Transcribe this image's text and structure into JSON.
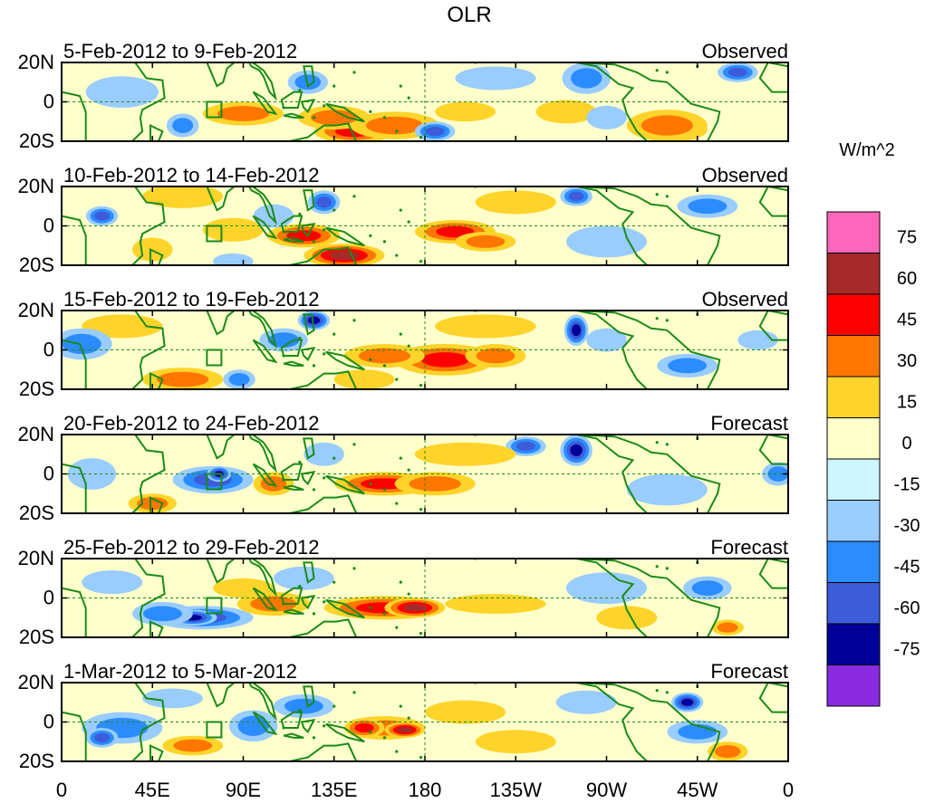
{
  "chart_data": {
    "type": "heatmap",
    "title": "OLR",
    "units": "W/m^2",
    "x_ticks": [
      "0",
      "45E",
      "90E",
      "135E",
      "180",
      "135W",
      "90W",
      "45W",
      "0"
    ],
    "y_ticks": [
      "20N",
      "0",
      "20S"
    ],
    "xlim": [
      0,
      360
    ],
    "ylim": [
      -20,
      20
    ],
    "colorbar": {
      "levels": [
        "75",
        "60",
        "45",
        "30",
        "15",
        "0",
        "-15",
        "-30",
        "-45",
        "-60",
        "-75"
      ],
      "colors": [
        "#ff66bb",
        "#a52a2a",
        "#ff0000",
        "#ff7700",
        "#ffd42a",
        "#ffffcc",
        "#ccf5ff",
        "#99ccff",
        "#2b8cff",
        "#3d5cd9",
        "#000099",
        "#8a2be2"
      ]
    },
    "panels": [
      {
        "period": "5-Feb-2012 to 9-Feb-2012",
        "status": "Observed",
        "blobs": [
          [
            145,
            -15,
            20,
            6,
            45
          ],
          [
            165,
            -12,
            22,
            7,
            30
          ],
          [
            135,
            -8,
            18,
            6,
            30
          ],
          [
            90,
            -6,
            20,
            6,
            30
          ],
          [
            60,
            -12,
            8,
            6,
            -30
          ],
          [
            122,
            10,
            10,
            6,
            -30
          ],
          [
            200,
            -5,
            15,
            5,
            15
          ],
          [
            250,
            -5,
            15,
            6,
            15
          ],
          [
            215,
            12,
            20,
            6,
            -15
          ],
          [
            260,
            12,
            12,
            8,
            -30
          ],
          [
            305,
            -14,
            15,
            6,
            60
          ],
          [
            300,
            -12,
            20,
            8,
            30
          ],
          [
            335,
            15,
            10,
            5,
            -45
          ],
          [
            185,
            -15,
            10,
            5,
            -45
          ],
          [
            30,
            5,
            18,
            8,
            -15
          ],
          [
            270,
            -8,
            10,
            6,
            -15
          ]
        ]
      },
      {
        "period": "10-Feb-2012 to 14-Feb-2012",
        "status": "Observed",
        "blobs": [
          [
            140,
            -15,
            20,
            6,
            60
          ],
          [
            120,
            -5,
            18,
            6,
            45
          ],
          [
            195,
            -3,
            20,
            6,
            45
          ],
          [
            210,
            -8,
            15,
            5,
            30
          ],
          [
            20,
            5,
            8,
            5,
            -45
          ],
          [
            130,
            12,
            8,
            6,
            -45
          ],
          [
            255,
            15,
            8,
            5,
            -45
          ],
          [
            320,
            10,
            15,
            6,
            -30
          ],
          [
            45,
            -12,
            10,
            6,
            15
          ],
          [
            85,
            -2,
            15,
            6,
            15
          ],
          [
            225,
            12,
            20,
            6,
            15
          ],
          [
            60,
            15,
            20,
            6,
            15
          ],
          [
            105,
            5,
            10,
            6,
            -15
          ],
          [
            270,
            -8,
            20,
            8,
            -15
          ],
          [
            85,
            -18,
            10,
            4,
            -15
          ]
        ]
      },
      {
        "period": "15-Feb-2012 to 19-Feb-2012",
        "status": "Observed",
        "blobs": [
          [
            190,
            -5,
            25,
            8,
            45
          ],
          [
            160,
            -3,
            20,
            6,
            30
          ],
          [
            215,
            -3,
            15,
            6,
            30
          ],
          [
            60,
            -15,
            20,
            6,
            30
          ],
          [
            210,
            12,
            25,
            6,
            15
          ],
          [
            30,
            12,
            20,
            6,
            15
          ],
          [
            110,
            5,
            12,
            6,
            -30
          ],
          [
            125,
            15,
            8,
            5,
            -60
          ],
          [
            255,
            10,
            6,
            8,
            -60
          ],
          [
            10,
            3,
            15,
            8,
            -30
          ],
          [
            88,
            -15,
            8,
            5,
            -30
          ],
          [
            310,
            -8,
            15,
            6,
            -30
          ],
          [
            345,
            5,
            10,
            5,
            -15
          ],
          [
            150,
            -15,
            15,
            5,
            15
          ],
          [
            270,
            5,
            10,
            6,
            -15
          ]
        ]
      },
      {
        "period": "20-Feb-2012 to 24-Feb-2012",
        "status": "Forecast",
        "blobs": [
          [
            160,
            -5,
            25,
            6,
            45
          ],
          [
            185,
            -5,
            20,
            6,
            30
          ],
          [
            75,
            -3,
            20,
            7,
            -45
          ],
          [
            78,
            0,
            6,
            4,
            -60
          ],
          [
            230,
            14,
            10,
            5,
            -45
          ],
          [
            255,
            12,
            8,
            8,
            -60
          ],
          [
            45,
            -15,
            12,
            5,
            30
          ],
          [
            105,
            -5,
            10,
            6,
            30
          ],
          [
            15,
            0,
            12,
            8,
            -15
          ],
          [
            130,
            10,
            10,
            6,
            -15
          ],
          [
            355,
            0,
            8,
            6,
            -30
          ],
          [
            200,
            10,
            25,
            6,
            15
          ],
          [
            300,
            -8,
            20,
            8,
            -15
          ]
        ]
      },
      {
        "period": "25-Feb-2012 to 29-Feb-2012",
        "status": "Forecast",
        "blobs": [
          [
            160,
            -5,
            30,
            6,
            45
          ],
          [
            175,
            -5,
            15,
            5,
            60
          ],
          [
            70,
            -10,
            25,
            6,
            -45
          ],
          [
            65,
            -10,
            12,
            4,
            -60
          ],
          [
            50,
            -8,
            15,
            6,
            -30
          ],
          [
            105,
            -3,
            18,
            6,
            30
          ],
          [
            215,
            -3,
            25,
            5,
            15
          ],
          [
            320,
            5,
            12,
            6,
            -30
          ],
          [
            330,
            -15,
            8,
            4,
            30
          ],
          [
            120,
            10,
            15,
            6,
            -15
          ],
          [
            25,
            8,
            15,
            6,
            -15
          ],
          [
            270,
            5,
            20,
            8,
            -15
          ],
          [
            90,
            5,
            15,
            5,
            15
          ],
          [
            280,
            -10,
            15,
            6,
            15
          ]
        ]
      },
      {
        "period": "1-Mar-2012 to 5-Mar-2012",
        "status": "Forecast",
        "blobs": [
          [
            160,
            -3,
            20,
            6,
            30
          ],
          [
            170,
            -4,
            10,
            4,
            60
          ],
          [
            150,
            -3,
            10,
            5,
            45
          ],
          [
            30,
            -3,
            20,
            8,
            -30
          ],
          [
            20,
            -8,
            8,
            5,
            -45
          ],
          [
            95,
            -2,
            12,
            8,
            -30
          ],
          [
            120,
            8,
            15,
            6,
            -30
          ],
          [
            310,
            10,
            8,
            5,
            -60
          ],
          [
            315,
            -5,
            15,
            6,
            -30
          ],
          [
            200,
            5,
            20,
            6,
            15
          ],
          [
            225,
            -10,
            20,
            6,
            15
          ],
          [
            65,
            -12,
            15,
            5,
            30
          ],
          [
            330,
            -15,
            10,
            5,
            30
          ],
          [
            260,
            10,
            15,
            6,
            -15
          ],
          [
            55,
            12,
            15,
            5,
            -15
          ]
        ]
      }
    ]
  }
}
